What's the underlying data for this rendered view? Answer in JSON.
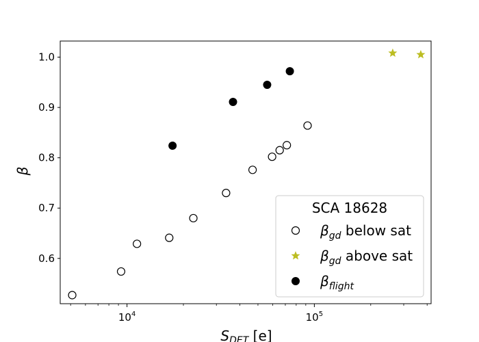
{
  "chart_data": {
    "type": "scatter",
    "title": "",
    "xscale": "log",
    "xlim": [
      4400,
      420000
    ],
    "ylim": [
      0.51,
      1.032
    ],
    "xlabel": {
      "main": "S",
      "sub": "DET",
      "unit": " [e]"
    },
    "ylabel": "β",
    "xticks": [
      {
        "value": 10000,
        "base": "10",
        "exp": "4"
      },
      {
        "value": 100000,
        "base": "10",
        "exp": "5"
      }
    ],
    "yticks": [
      {
        "value": 0.6,
        "label": "0.6"
      },
      {
        "value": 0.7,
        "label": "0.7"
      },
      {
        "value": 0.8,
        "label": "0.8"
      },
      {
        "value": 0.9,
        "label": "0.9"
      },
      {
        "value": 1.0,
        "label": "1.0"
      }
    ],
    "grid": false,
    "legend": {
      "placement": "lower-right",
      "title": "SCA 18628"
    },
    "series": [
      {
        "name": {
          "main": "β",
          "sub": "gd",
          "suffix": " below sat"
        },
        "marker": "open-circle",
        "color": "#000000",
        "points": [
          {
            "x": 5100,
            "y": 0.527
          },
          {
            "x": 9300,
            "y": 0.574
          },
          {
            "x": 11300,
            "y": 0.629
          },
          {
            "x": 16800,
            "y": 0.641
          },
          {
            "x": 22600,
            "y": 0.68
          },
          {
            "x": 33800,
            "y": 0.73
          },
          {
            "x": 46800,
            "y": 0.776
          },
          {
            "x": 59500,
            "y": 0.802
          },
          {
            "x": 65300,
            "y": 0.815
          },
          {
            "x": 71300,
            "y": 0.825
          },
          {
            "x": 92000,
            "y": 0.864
          }
        ]
      },
      {
        "name": {
          "main": "β",
          "sub": "gd",
          "suffix": " above sat"
        },
        "marker": "star",
        "color": "#bcbd22",
        "points": [
          {
            "x": 262000,
            "y": 1.008
          },
          {
            "x": 370000,
            "y": 1.005
          }
        ]
      },
      {
        "name": {
          "main": "β",
          "sub": "flight",
          "suffix": ""
        },
        "marker": "filled-circle",
        "color": "#000000",
        "points": [
          {
            "x": 17500,
            "y": 0.824
          },
          {
            "x": 36800,
            "y": 0.911
          },
          {
            "x": 56000,
            "y": 0.945
          },
          {
            "x": 74000,
            "y": 0.972
          }
        ]
      }
    ]
  }
}
